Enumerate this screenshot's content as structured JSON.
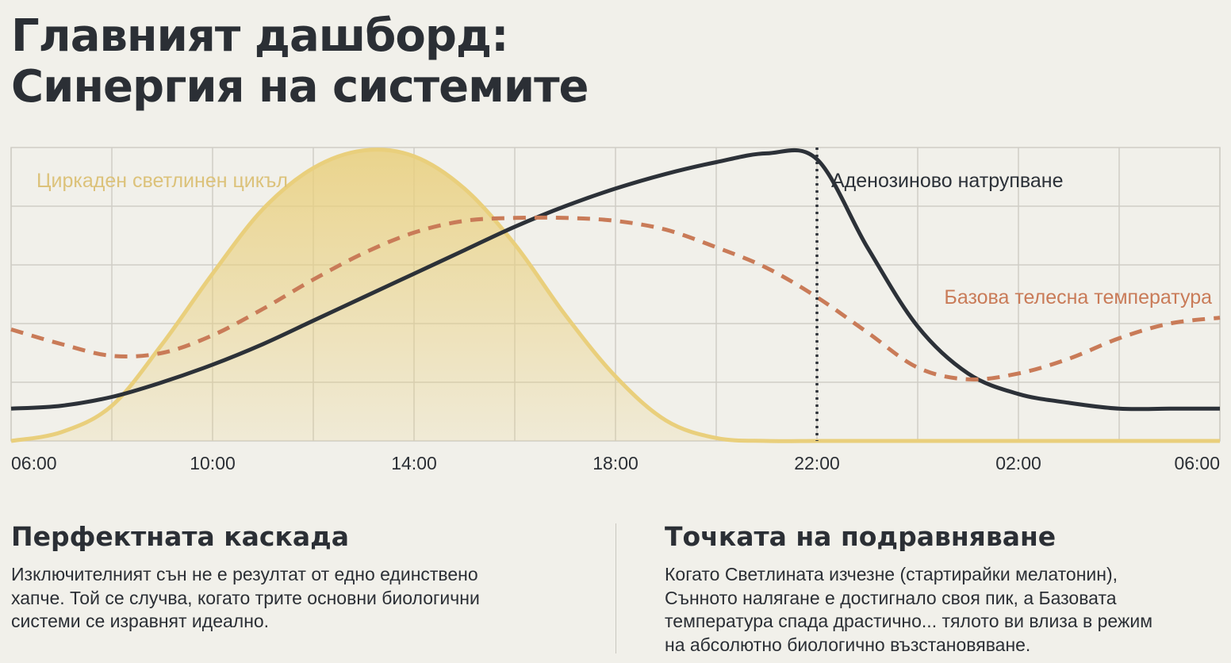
{
  "header": {
    "title_line1": "Главният дашборд:",
    "title_line2": "Синергия на системите"
  },
  "chart_data": {
    "type": "line",
    "x_ticks": [
      "06:00",
      "10:00",
      "14:00",
      "18:00",
      "22:00",
      "02:00",
      "06:00"
    ],
    "x_hours": [
      6,
      7,
      8,
      9,
      10,
      11,
      12,
      13,
      14,
      15,
      16,
      17,
      18,
      19,
      20,
      21,
      22,
      23,
      24,
      25,
      26,
      27,
      28,
      29,
      30
    ],
    "series": [
      {
        "name": "Циркаден светлинен цикъл",
        "style": "filled-area",
        "color": "#e9cf7c",
        "values": [
          0.0,
          0.03,
          0.12,
          0.33,
          0.57,
          0.79,
          0.93,
          0.99,
          0.97,
          0.86,
          0.67,
          0.43,
          0.22,
          0.07,
          0.01,
          0.0,
          0.0,
          0.0,
          0.0,
          0.0,
          0.0,
          0.0,
          0.0,
          0.0,
          0.0
        ]
      },
      {
        "name": "Аденозиново натрупване",
        "style": "solid",
        "color": "#2c3138",
        "values": [
          0.11,
          0.12,
          0.15,
          0.2,
          0.26,
          0.33,
          0.41,
          0.49,
          0.57,
          0.65,
          0.73,
          0.8,
          0.86,
          0.91,
          0.95,
          0.98,
          0.96,
          0.66,
          0.39,
          0.23,
          0.16,
          0.13,
          0.11,
          0.11,
          0.11
        ]
      },
      {
        "name": "Базова телесна температура",
        "style": "dashed",
        "color": "#c97b58",
        "values": [
          0.38,
          0.33,
          0.29,
          0.3,
          0.36,
          0.45,
          0.55,
          0.64,
          0.71,
          0.75,
          0.76,
          0.76,
          0.75,
          0.72,
          0.66,
          0.59,
          0.49,
          0.37,
          0.25,
          0.21,
          0.23,
          0.28,
          0.35,
          0.4,
          0.42
        ]
      }
    ],
    "marker": {
      "x_hour": 22,
      "style": "dotted",
      "color": "#2c3138"
    },
    "ylim": [
      0,
      1
    ],
    "grid": true
  },
  "sections": {
    "left": {
      "title": "Перфектната каскада",
      "lines": [
        "Изключителният сън не е резултат от едно единствено",
        "хапче. Той се случва, когато трите основни биологични",
        "системи се изравнят идеално."
      ]
    },
    "right": {
      "title": "Точката на подравняване",
      "lines": [
        "Когато Светлината изчезне (стартирайки мелатонин),",
        "Сънното налягане е достигнало своя пик, а Базовата",
        "температура спада драстично... тялото ви влиза в режим",
        "на абсолютно биологично възстановяване."
      ]
    }
  },
  "colors": {
    "background": "#f1f0ea",
    "text": "#2b2f35",
    "grid": "#cfcdc6",
    "light": "#e9cf7c",
    "adenosine": "#2c3138",
    "temperature": "#c97b58"
  }
}
